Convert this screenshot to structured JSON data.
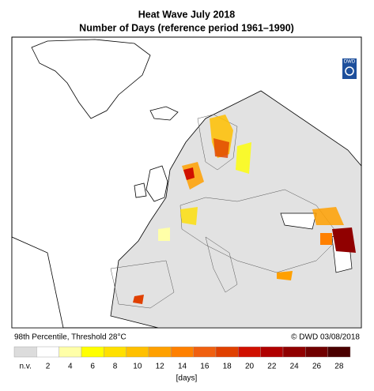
{
  "header": {
    "title": "Heat Wave July 2018",
    "subtitle": "Number of Days (reference period 1961–1990)"
  },
  "logo": "DWD",
  "footer": {
    "left": "98th Percentile, Threshold 28°C",
    "right": "© DWD 03/08/2018"
  },
  "legend": {
    "labels": [
      "n.v.",
      2,
      4,
      6,
      8,
      10,
      12,
      14,
      16,
      18,
      20,
      22,
      24,
      26,
      28
    ],
    "colors": [
      "#dcdcdc",
      "#ffffff",
      "#ffffa8",
      "#ffff00",
      "#ffe000",
      "#ffc000",
      "#ffa000",
      "#ff8000",
      "#f06010",
      "#e04000",
      "#d01000",
      "#b00000",
      "#900000",
      "#700000",
      "#4a0000"
    ],
    "unit": "[days]"
  }
}
